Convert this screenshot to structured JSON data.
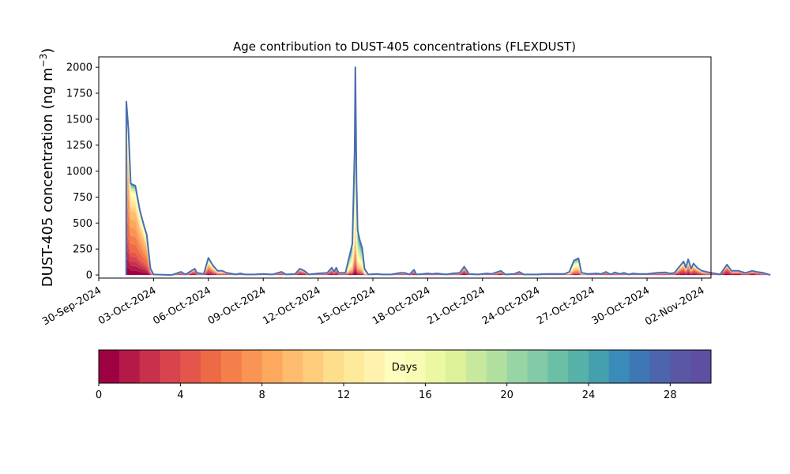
{
  "chart_data": {
    "type": "area",
    "title": "Age contribution to DUST-405 concentrations (FLEXDUST)",
    "ylabel_main": "DUST-405 concentration (ng m",
    "ylabel_sup": "−3",
    "ylabel_close": ")",
    "xlabel": "",
    "x_range": [
      "2024-09-30T00:00",
      "2024-11-02T12:00"
    ],
    "ylim": [
      -30,
      2100
    ],
    "x_ticks": [
      "30-Sep-2024",
      "03-Oct-2024",
      "06-Oct-2024",
      "09-Oct-2024",
      "12-Oct-2024",
      "15-Oct-2024",
      "18-Oct-2024",
      "21-Oct-2024",
      "24-Oct-2024",
      "27-Oct-2024",
      "30-Oct-2024",
      "02-Nov-2024"
    ],
    "x_tick_dates": [
      "2024-09-30",
      "2024-10-03",
      "2024-10-06",
      "2024-10-09",
      "2024-10-12",
      "2024-10-15",
      "2024-10-18",
      "2024-10-21",
      "2024-10-24",
      "2024-10-27",
      "2024-10-30",
      "2024-11-02"
    ],
    "y_ticks": [
      0,
      250,
      500,
      750,
      1000,
      1250,
      1500,
      1750,
      2000
    ],
    "grid": false,
    "total_series": {
      "name": "",
      "color": "#4a6fb0",
      "points": [
        [
          "2024-10-01T12:00",
          0
        ],
        [
          "2024-10-01T12:10",
          1670
        ],
        [
          "2024-10-01T15:00",
          1400
        ],
        [
          "2024-10-01T18:00",
          880
        ],
        [
          "2024-10-02T00:00",
          860
        ],
        [
          "2024-10-02T06:00",
          620
        ],
        [
          "2024-10-02T12:00",
          460
        ],
        [
          "2024-10-02T15:00",
          390
        ],
        [
          "2024-10-02T20:00",
          60
        ],
        [
          "2024-10-03T00:00",
          5
        ],
        [
          "2024-10-04T00:00",
          0
        ],
        [
          "2024-10-04T12:00",
          30
        ],
        [
          "2024-10-04T18:00",
          5
        ],
        [
          "2024-10-05T06:00",
          60
        ],
        [
          "2024-10-05T09:00",
          20
        ],
        [
          "2024-10-05T18:00",
          10
        ],
        [
          "2024-10-06T00:00",
          165
        ],
        [
          "2024-10-06T06:00",
          90
        ],
        [
          "2024-10-06T12:00",
          40
        ],
        [
          "2024-10-06T18:00",
          40
        ],
        [
          "2024-10-07T00:00",
          20
        ],
        [
          "2024-10-07T12:00",
          5
        ],
        [
          "2024-10-07T18:00",
          15
        ],
        [
          "2024-10-08T00:00",
          5
        ],
        [
          "2024-10-08T12:00",
          5
        ],
        [
          "2024-10-09T00:00",
          10
        ],
        [
          "2024-10-09T12:00",
          5
        ],
        [
          "2024-10-10T00:00",
          30
        ],
        [
          "2024-10-10T06:00",
          5
        ],
        [
          "2024-10-10T18:00",
          10
        ],
        [
          "2024-10-11T00:00",
          60
        ],
        [
          "2024-10-11T06:00",
          40
        ],
        [
          "2024-10-11T12:00",
          5
        ],
        [
          "2024-10-12T00:00",
          15
        ],
        [
          "2024-10-12T12:00",
          20
        ],
        [
          "2024-10-12T18:00",
          70
        ],
        [
          "2024-10-12T21:00",
          30
        ],
        [
          "2024-10-13T00:00",
          70
        ],
        [
          "2024-10-13T03:00",
          20
        ],
        [
          "2024-10-13T12:00",
          20
        ],
        [
          "2024-10-13T21:00",
          300
        ],
        [
          "2024-10-14T00:00",
          1200
        ],
        [
          "2024-10-14T01:00",
          2000
        ],
        [
          "2024-10-14T02:30",
          900
        ],
        [
          "2024-10-14T04:00",
          430
        ],
        [
          "2024-10-14T07:00",
          330
        ],
        [
          "2024-10-14T10:00",
          260
        ],
        [
          "2024-10-14T13:00",
          60
        ],
        [
          "2024-10-14T18:00",
          5
        ],
        [
          "2024-10-15T06:00",
          10
        ],
        [
          "2024-10-15T12:00",
          5
        ],
        [
          "2024-10-16T00:00",
          5
        ],
        [
          "2024-10-16T12:00",
          20
        ],
        [
          "2024-10-16T18:00",
          20
        ],
        [
          "2024-10-17T00:00",
          5
        ],
        [
          "2024-10-17T06:00",
          50
        ],
        [
          "2024-10-17T09:00",
          5
        ],
        [
          "2024-10-17T18:00",
          10
        ],
        [
          "2024-10-18T00:00",
          15
        ],
        [
          "2024-10-18T06:00",
          10
        ],
        [
          "2024-10-18T12:00",
          15
        ],
        [
          "2024-10-19T00:00",
          5
        ],
        [
          "2024-10-19T09:00",
          15
        ],
        [
          "2024-10-19T18:00",
          20
        ],
        [
          "2024-10-20T00:00",
          80
        ],
        [
          "2024-10-20T06:00",
          10
        ],
        [
          "2024-10-20T18:00",
          5
        ],
        [
          "2024-10-21T06:00",
          15
        ],
        [
          "2024-10-21T12:00",
          10
        ],
        [
          "2024-10-22T00:00",
          40
        ],
        [
          "2024-10-22T06:00",
          5
        ],
        [
          "2024-10-22T18:00",
          10
        ],
        [
          "2024-10-23T00:00",
          30
        ],
        [
          "2024-10-23T06:00",
          5
        ],
        [
          "2024-10-24T00:00",
          5
        ],
        [
          "2024-10-24T12:00",
          10
        ],
        [
          "2024-10-25T12:00",
          10
        ],
        [
          "2024-10-25T18:00",
          30
        ],
        [
          "2024-10-26T00:00",
          140
        ],
        [
          "2024-10-26T06:00",
          160
        ],
        [
          "2024-10-26T10:00",
          20
        ],
        [
          "2024-10-26T18:00",
          10
        ],
        [
          "2024-10-27T06:00",
          15
        ],
        [
          "2024-10-27T12:00",
          10
        ],
        [
          "2024-10-27T18:00",
          30
        ],
        [
          "2024-10-28T00:00",
          5
        ],
        [
          "2024-10-28T06:00",
          25
        ],
        [
          "2024-10-28T12:00",
          10
        ],
        [
          "2024-10-28T18:00",
          20
        ],
        [
          "2024-10-29T00:00",
          5
        ],
        [
          "2024-10-29T06:00",
          15
        ],
        [
          "2024-10-29T12:00",
          10
        ],
        [
          "2024-10-30T00:00",
          10
        ],
        [
          "2024-10-30T06:00",
          15
        ],
        [
          "2024-10-30T12:00",
          20
        ],
        [
          "2024-10-31T00:00",
          25
        ],
        [
          "2024-10-31T06:00",
          15
        ],
        [
          "2024-10-31T12:00",
          20
        ],
        [
          "2024-11-01T00:00",
          130
        ],
        [
          "2024-11-01T03:00",
          70
        ],
        [
          "2024-11-01T06:00",
          150
        ],
        [
          "2024-11-01T10:00",
          60
        ],
        [
          "2024-11-01T13:00",
          110
        ],
        [
          "2024-11-01T18:00",
          70
        ],
        [
          "2024-11-02T00:00",
          40
        ],
        [
          "2024-11-02T06:00",
          30
        ],
        [
          "2024-11-02T12:00",
          20
        ],
        [
          "2024-11-03T00:00",
          5
        ],
        [
          "2024-11-03T09:00",
          100
        ],
        [
          "2024-11-03T15:00",
          40
        ],
        [
          "2024-11-04T00:00",
          40
        ],
        [
          "2024-11-04T09:00",
          20
        ],
        [
          "2024-11-04T18:00",
          40
        ],
        [
          "2024-11-05T00:00",
          30
        ],
        [
          "2024-11-05T09:00",
          20
        ],
        [
          "2024-11-05T18:00",
          0
        ]
      ]
    },
    "age_breakdown_note": "Stacked bands sum to the total; ages 0–30 days with per-event age mix.",
    "events": [
      {
        "start": "2024-10-01T12:00",
        "end": "2024-10-03T00:00",
        "mix": [
          0.25,
          0.45,
          0.2,
          0.06,
          0.03,
          0.01
        ]
      },
      {
        "start": "2024-10-13T21:00",
        "end": "2024-10-14T18:00",
        "mix": [
          0.08,
          0.12,
          0.2,
          0.3,
          0.2,
          0.1
        ]
      },
      {
        "start": "2024-10-05T18:00",
        "end": "2024-10-06T18:00",
        "mix": [
          0.3,
          0.3,
          0.2,
          0.1,
          0.05,
          0.05
        ]
      },
      {
        "start": "2024-10-25T18:00",
        "end": "2024-10-26T10:00",
        "mix": [
          0.15,
          0.2,
          0.3,
          0.2,
          0.1,
          0.05
        ]
      },
      {
        "start": "2024-10-31T18:00",
        "end": "2024-11-02T06:00",
        "mix": [
          0.4,
          0.3,
          0.15,
          0.08,
          0.04,
          0.03
        ]
      }
    ],
    "colorbar": {
      "label": "Days",
      "min": 0,
      "max": 30,
      "n_bins": 30,
      "ticks": [
        0,
        4,
        8,
        12,
        16,
        20,
        24,
        28
      ],
      "colors": [
        "#9e0142",
        "#b41947",
        "#c8304c",
        "#d8434e",
        "#e4564b",
        "#ee6a45",
        "#f57f4a",
        "#f99455",
        "#fca95f",
        "#fdbc6e",
        "#fecd7c",
        "#fedd8d",
        "#fee89a",
        "#fff2ae",
        "#fffdbe",
        "#f7fbb4",
        "#ebf7a1",
        "#ddf199",
        "#c8e99d",
        "#b1df9f",
        "#98d5a4",
        "#82cba6",
        "#6abfa4",
        "#56b1a9",
        "#449fae",
        "#3a8bb8",
        "#3f77b6",
        "#4d65ad",
        "#5a58a5",
        "#5e4fa2"
      ]
    }
  }
}
